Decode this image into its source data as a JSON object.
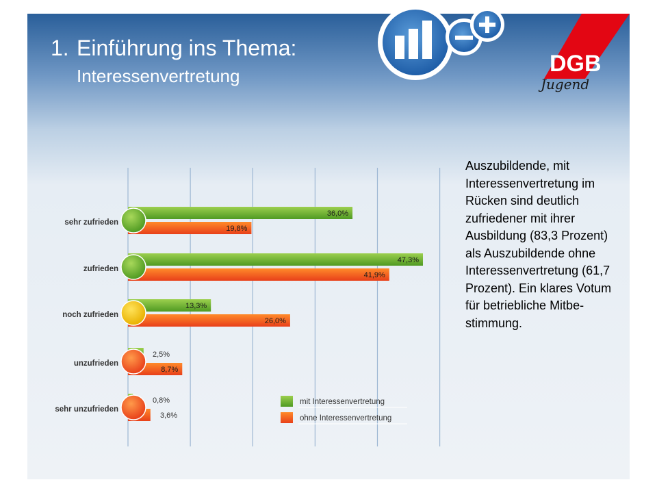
{
  "header": {
    "number": "1.",
    "title": "Einführung ins Thema:",
    "subtitle": "Interessenvertretung"
  },
  "logo": {
    "text": "DGB",
    "script": "Jugend",
    "icon": "bar-chart-minus-plus-icon"
  },
  "body_text": "Auszubildende, mit Interessenvertretung im Rücken sind deutlich zufriedener mit ihrer Ausbildung (83,3 Prozent) als Auszubildende ohne Interessenvertretung (61,7 Prozent). Ein klares Votum für betriebliche Mitbe-stimmung.",
  "colors": {
    "green": "#5fae2e",
    "orange": "#f05a1a",
    "yellow": "#f5c400",
    "brand_red": "#e30613",
    "grid": "#9db7d3"
  },
  "chart_data": {
    "type": "bar",
    "orientation": "horizontal",
    "categories": [
      "sehr zufrieden",
      "zufrieden",
      "noch zufrieden",
      "unzufrieden",
      "sehr unzufrieden"
    ],
    "series": [
      {
        "name": "mit Interessenvertretung",
        "values": [
          36.0,
          47.3,
          13.3,
          2.5,
          0.8
        ],
        "labels": [
          "36,0%",
          "47,3%",
          "13,3%",
          "2,5%",
          "0,8%"
        ],
        "color": "#5fae2e"
      },
      {
        "name": "ohne Interessenvertretung",
        "values": [
          19.8,
          41.9,
          26.0,
          8.7,
          3.6
        ],
        "labels": [
          "19,8%",
          "41,9%",
          "26,0%",
          "8,7%",
          "3,6%"
        ],
        "color": "#f05a1a"
      }
    ],
    "marker_colors": [
      "green",
      "green",
      "yellow",
      "orange",
      "orange"
    ],
    "xlim": [
      0,
      50
    ],
    "grid": true,
    "legend_position": "bottom-right"
  }
}
